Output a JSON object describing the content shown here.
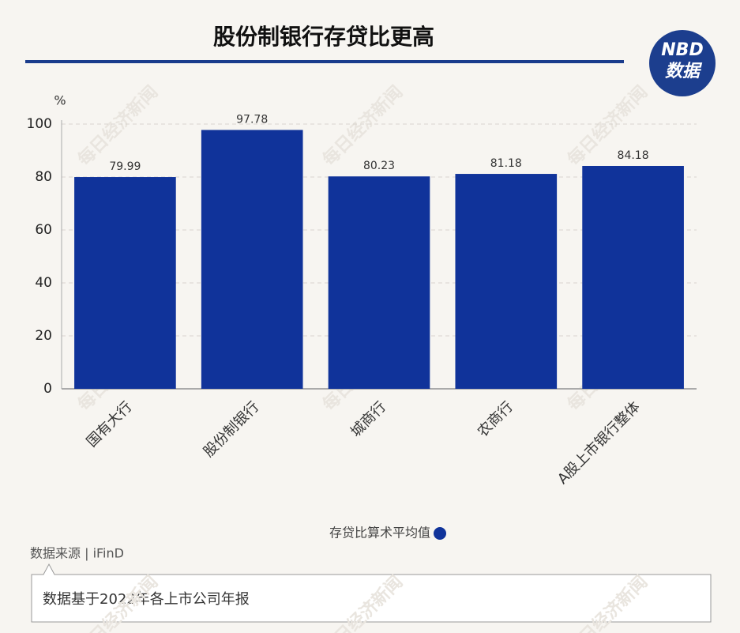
{
  "chart_data": {
    "type": "bar",
    "title": "股份制银行存贷比更高",
    "logo": {
      "top": "NBD",
      "bottom": "数据"
    },
    "watermark": "每日经济新闻",
    "y_label": "%",
    "categories": [
      "国有大行",
      "股份制银行",
      "城商行",
      "农商行",
      "A股上市银行整体"
    ],
    "series": [
      {
        "name": "存贷比算术平均值",
        "color": "#10339a",
        "values": [
          79.99,
          97.78,
          80.23,
          81.18,
          84.18
        ]
      }
    ],
    "ylim": [
      0,
      100
    ],
    "yticks": [
      0,
      20,
      40,
      60,
      80,
      100
    ],
    "grid": true,
    "source": "数据来源 | iFinD",
    "note": "数据基于2022年各上市公司年报"
  }
}
